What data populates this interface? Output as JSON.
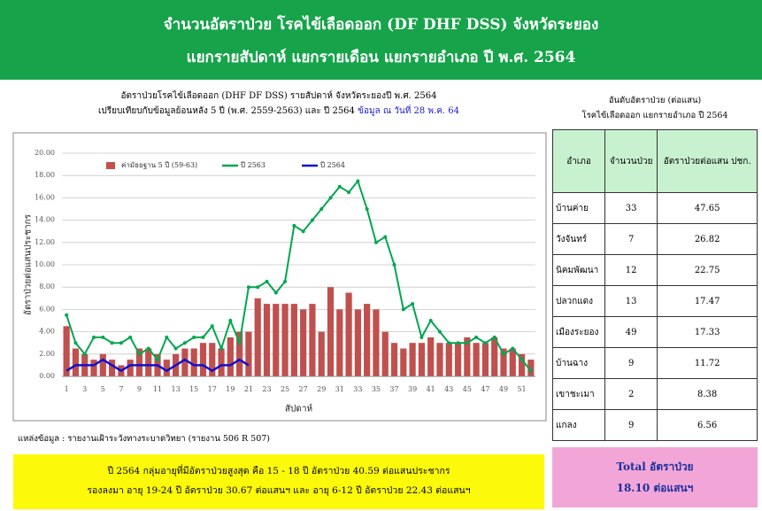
{
  "header": {
    "line1": "จำนวนอัตราป่วย โรคไข้เลือดออก (DF DHF DSS) จังหวัดระยอง",
    "line2": "แยกรายสัปดาห์ แยกรายเดือน แยกรายอำเภอ ปี พ.ศ. 2564"
  },
  "chart_data": {
    "type": "bar_line",
    "title": "อัตราป่วยโรคไข้เลือดออก (DHF DF DSS) รายสัปดาห์ จังหวัดระยองปี พ.ศ. 2564",
    "subtitle": "เปรียบเทียบกับข้อมูลย้อนหลัง 5 ปี (พ.ศ. 2559-2563) และ ปี 2564",
    "annotation": "ข้อมูล ณ วันที่ 28 พ.ค. 64",
    "x_label": "สัปดาห์",
    "y_label": "อัตราป่วยต่อแสนประชากร",
    "categories": [
      1,
      null,
      3,
      null,
      5,
      null,
      7,
      null,
      9,
      null,
      11,
      null,
      13,
      null,
      15,
      null,
      17,
      null,
      19,
      null,
      21,
      null,
      23,
      null,
      25,
      null,
      27,
      null,
      29,
      null,
      31,
      null,
      33,
      null,
      35,
      null,
      37,
      null,
      39,
      null,
      41,
      null,
      43,
      null,
      45,
      null,
      47,
      null,
      49,
      null,
      51,
      null
    ],
    "series": [
      {
        "name": "ค่ามัธยฐาน 5 ปี (59-63)",
        "kind": "bar",
        "color": "#c0504d",
        "values": [
          4.5,
          2.5,
          2,
          1.5,
          2,
          1.5,
          1,
          1.5,
          2.5,
          2.5,
          2,
          1.5,
          2,
          2.5,
          2.5,
          3,
          3,
          2.5,
          3.5,
          4,
          4,
          7,
          6.5,
          6.5,
          6.5,
          6.5,
          6,
          6.5,
          4,
          8,
          6,
          7.5,
          6,
          6.5,
          6,
          4,
          3,
          2.5,
          3,
          3,
          3.5,
          3,
          3,
          3,
          3.5,
          3,
          3,
          3.5,
          2.5,
          2.5,
          2,
          1.5
        ]
      },
      {
        "name": "ปี 2563",
        "kind": "line",
        "color": "#00a650",
        "values": [
          5.5,
          3,
          2,
          3.5,
          3.5,
          3,
          3,
          3.5,
          2,
          2.5,
          1.5,
          3.5,
          2.5,
          3,
          3.5,
          3.5,
          4.5,
          2.5,
          5,
          3,
          8,
          8,
          8.5,
          7.5,
          8.5,
          13.5,
          13,
          14,
          15,
          16,
          17,
          16.5,
          17.5,
          15,
          12,
          12.5,
          10,
          6,
          6.5,
          3.5,
          5,
          4,
          3,
          3,
          3,
          3.5,
          3,
          3.5,
          2,
          2.5,
          1.5,
          0.5
        ]
      },
      {
        "name": "ปี 2564",
        "kind": "line",
        "color": "#1010d0",
        "values": [
          0.5,
          1,
          1,
          1,
          1.5,
          1,
          0.5,
          1,
          1,
          1,
          1,
          0.5,
          1,
          1.5,
          1,
          1,
          0.5,
          1,
          1,
          1.5,
          1,
          null,
          null,
          null,
          null,
          null,
          null,
          null,
          null,
          null,
          null,
          null,
          null,
          null,
          null,
          null,
          null,
          null,
          null,
          null,
          null,
          null,
          null,
          null,
          null,
          null,
          null,
          null,
          null,
          null,
          null,
          null
        ]
      }
    ],
    "ylim": [
      0,
      20
    ],
    "yticks": [
      {
        "value": 0,
        "label": "0.00"
      },
      {
        "value": 2,
        "label": "2.00"
      },
      {
        "value": 4,
        "label": "4.00"
      },
      {
        "value": 6,
        "label": "6.00"
      },
      {
        "value": 8,
        "label": "8.00"
      },
      {
        "value": 10,
        "label": "10.00"
      },
      {
        "value": 12,
        "label": "12.00"
      },
      {
        "value": 14,
        "label": "14.00"
      },
      {
        "value": 16,
        "label": "16.00"
      },
      {
        "value": 18,
        "label": "18.00"
      },
      {
        "value": 20,
        "label": "20.00"
      }
    ],
    "grid": true,
    "legend": "top"
  },
  "table": {
    "caption1": "อันดับอัตราป่วย (ต่อแสน)",
    "caption2": "โรคไข้เลือดออก แยกรายอำเภอ ปี 2564",
    "columns": [
      "อำเภอ",
      "จำนวนป่วย",
      "อัตราป่วยต่อแสน ปชก."
    ],
    "rows": [
      [
        "บ้านค่าย",
        "33",
        "47.65"
      ],
      [
        "วังจันทร์",
        "7",
        "26.82"
      ],
      [
        "นิคมพัฒนา",
        "12",
        "22.75"
      ],
      [
        "ปลวกแดง",
        "13",
        "17.47"
      ],
      [
        "เมืองระยอง",
        "49",
        "17.33"
      ],
      [
        "บ้านฉาง",
        "9",
        "11.72"
      ],
      [
        "เขาชะเมา",
        "2",
        "8.38"
      ],
      [
        "แกลง",
        "9",
        "6.56"
      ]
    ]
  },
  "source": "แหล่งข้อมูล : รายงานเฝ้าระวังทางระบาดวิทยา (รายงาน 506 R 507)",
  "note": {
    "line1": "ปี 2564 กลุ่มอายุที่มีอัตราป่วยสูงสุด คือ 15 - 18 ปี อัตราป่วย 40.59 ต่อแสนประชากร",
    "line2": "รองลงมา อายุ 19-24 ปี อัตราป่วย 30.67 ต่อแสนฯ และ อายุ 6-12 ปี อัตราป่วย 22.43 ต่อแสนฯ"
  },
  "total": {
    "line1": "Total อัตราป่วย",
    "line2": "18.10 ต่อแสนฯ"
  }
}
